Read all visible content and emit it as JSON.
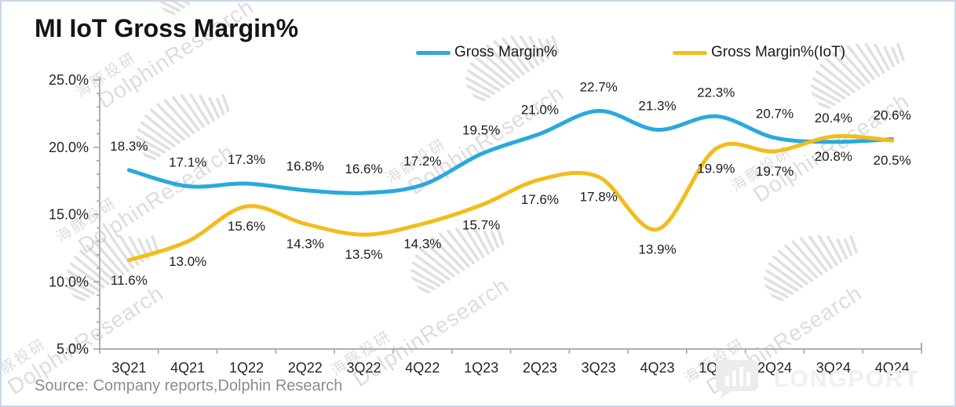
{
  "title": "MI IoT Gross Margin%",
  "legend": {
    "items": [
      {
        "label": "Gross Margin%",
        "color": "#29A9DC"
      },
      {
        "label": "Gross Margin%(IoT)",
        "color": "#F2BC1C"
      }
    ]
  },
  "source": "Source: Company reports,Dolphin Research",
  "watermark": {
    "cn": "海豚投研",
    "en": "DolphinResearch",
    "brand": "LONGPORT"
  },
  "chart_data": {
    "type": "line",
    "title": "MI IoT Gross Margin%",
    "categories": [
      "3Q21",
      "4Q21",
      "1Q22",
      "2Q22",
      "3Q22",
      "4Q22",
      "1Q23",
      "2Q23",
      "3Q23",
      "4Q23",
      "1Q24",
      "2Q24",
      "3Q24",
      "4Q24"
    ],
    "series": [
      {
        "name": "Gross Margin%",
        "color": "#29A9DC",
        "label_position": "above",
        "values": [
          18.3,
          17.1,
          17.3,
          16.8,
          16.6,
          17.2,
          19.5,
          21.0,
          22.7,
          21.3,
          22.3,
          20.7,
          20.4,
          20.6
        ]
      },
      {
        "name": "Gross Margin%(IoT)",
        "color": "#F2BC1C",
        "label_position": "below",
        "values": [
          11.6,
          13.0,
          15.6,
          14.3,
          13.5,
          14.3,
          15.7,
          17.6,
          17.8,
          13.9,
          19.9,
          19.7,
          20.8,
          20.5
        ]
      }
    ],
    "ylim": [
      5,
      25
    ],
    "ytick_step": 5,
    "yminor_step": 1,
    "ytick_labels": [
      "5.0%",
      "10.0%",
      "15.0%",
      "20.0%",
      "25.0%"
    ],
    "value_suffix": "%",
    "grid": false,
    "legend_position": "top",
    "data_labels": true
  }
}
